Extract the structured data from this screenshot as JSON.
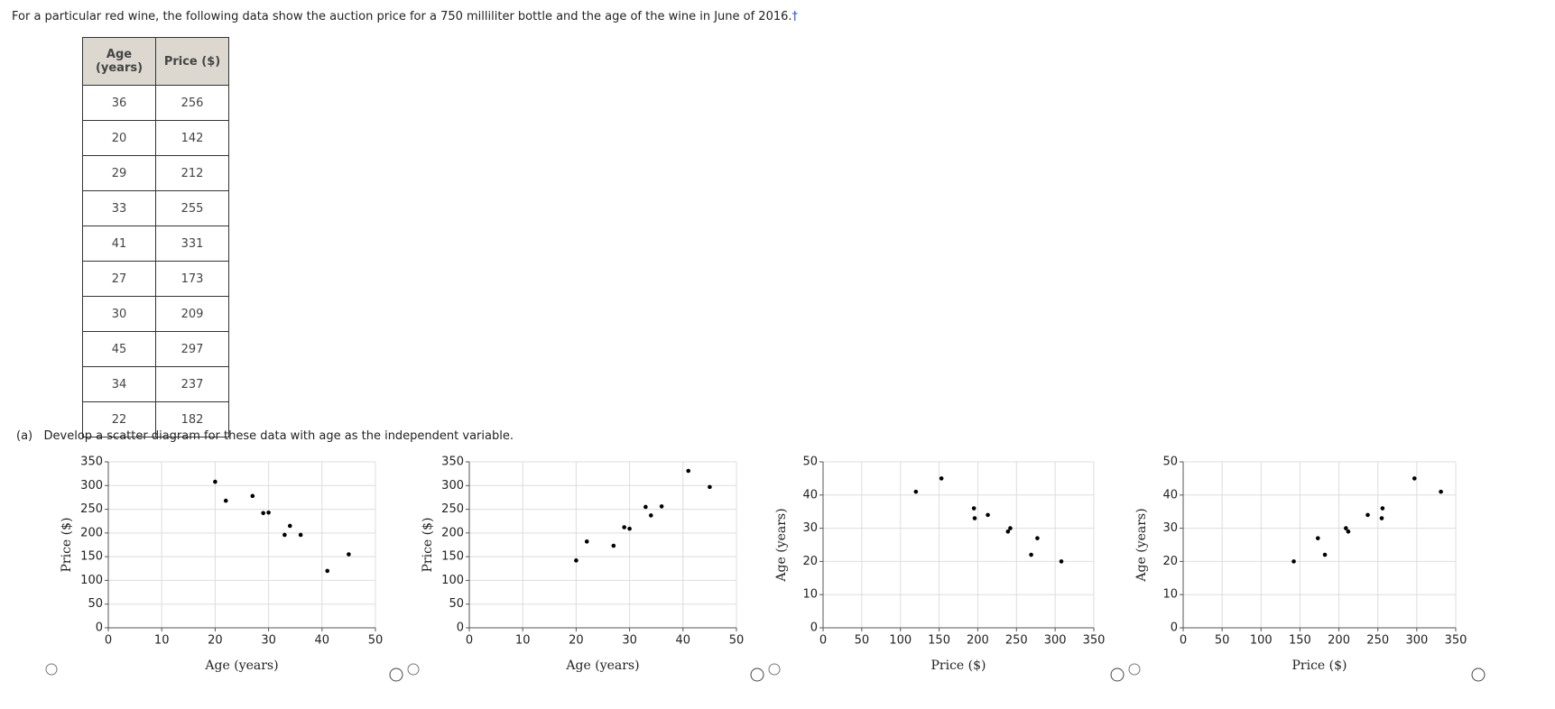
{
  "intro": "For a particular red wine, the following data show the auction price for a 750 milliliter bottle and the age of the wine in June of 2016.",
  "footnote_mark": "†",
  "table": {
    "header": [
      "Age (years)",
      "Price ($)"
    ],
    "rows": [
      [
        "36",
        "256"
      ],
      [
        "20",
        "142"
      ],
      [
        "29",
        "212"
      ],
      [
        "33",
        "255"
      ],
      [
        "41",
        "331"
      ],
      [
        "27",
        "173"
      ],
      [
        "30",
        "209"
      ],
      [
        "45",
        "297"
      ],
      [
        "34",
        "237"
      ],
      [
        "22",
        "182"
      ]
    ]
  },
  "question": {
    "label": "(a)",
    "text": "Develop a scatter diagram for these data with age as the independent variable."
  },
  "chart_data": [
    {
      "type": "scatter",
      "xlabel": "Age (years)",
      "ylabel": "Price ($)",
      "color": "#000000",
      "grid": true,
      "x": [
        20,
        22,
        27,
        29,
        30,
        33,
        34,
        36,
        41,
        45
      ],
      "values": [
        308,
        268,
        278,
        242,
        243,
        196,
        215,
        196,
        120,
        155
      ],
      "xlim": [
        0,
        50
      ],
      "xticks": [
        0,
        10,
        20,
        30,
        40,
        50
      ],
      "ylim": [
        0,
        350
      ],
      "yticks": [
        0,
        50,
        100,
        150,
        200,
        250,
        300,
        350
      ]
    },
    {
      "type": "scatter",
      "xlabel": "Age (years)",
      "ylabel": "Price ($)",
      "color": "#000000",
      "grid": true,
      "x": [
        36,
        20,
        29,
        33,
        41,
        27,
        30,
        45,
        34,
        22
      ],
      "values": [
        256,
        142,
        212,
        255,
        331,
        173,
        209,
        297,
        237,
        182
      ],
      "xlim": [
        0,
        50
      ],
      "xticks": [
        0,
        10,
        20,
        30,
        40,
        50
      ],
      "ylim": [
        0,
        350
      ],
      "yticks": [
        0,
        50,
        100,
        150,
        200,
        250,
        300,
        350
      ]
    },
    {
      "type": "scatter",
      "xlabel": "Price ($)",
      "ylabel": "Age (years)",
      "color": "#000000",
      "grid": true,
      "x": [
        120,
        153,
        195,
        196,
        213,
        239,
        242,
        269,
        277,
        308
      ],
      "values": [
        41,
        45,
        36,
        33,
        34,
        29,
        30,
        22,
        27,
        20
      ],
      "xlim": [
        0,
        350
      ],
      "xticks": [
        0,
        50,
        100,
        150,
        200,
        250,
        300,
        350
      ],
      "ylim": [
        0,
        50
      ],
      "yticks": [
        0,
        10,
        20,
        30,
        40,
        50
      ]
    },
    {
      "type": "scatter",
      "xlabel": "Price ($)",
      "ylabel": "Age (years)",
      "color": "#000000",
      "grid": true,
      "x": [
        256,
        142,
        212,
        255,
        331,
        173,
        209,
        297,
        237,
        182
      ],
      "values": [
        36,
        20,
        29,
        33,
        41,
        27,
        30,
        45,
        34,
        22
      ],
      "xlim": [
        0,
        350
      ],
      "xticks": [
        0,
        50,
        100,
        150,
        200,
        250,
        300,
        350
      ],
      "ylim": [
        0,
        50
      ],
      "yticks": [
        0,
        10,
        20,
        30,
        40,
        50
      ]
    }
  ]
}
